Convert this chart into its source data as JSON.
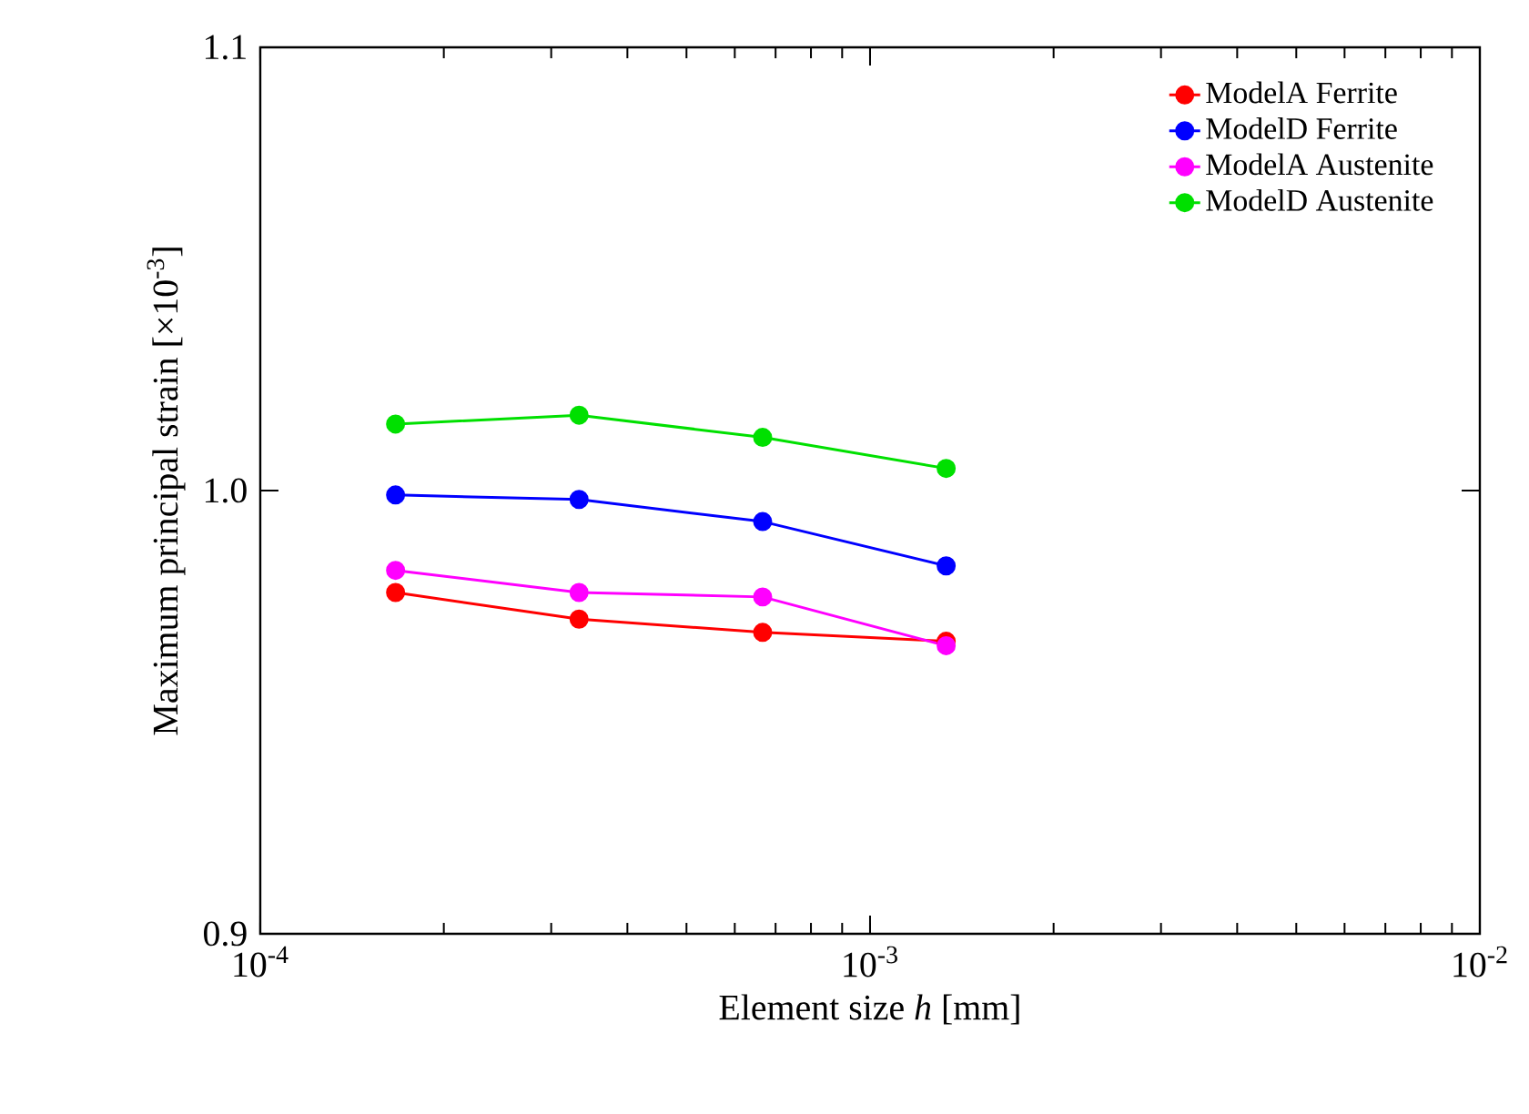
{
  "chart_data": {
    "type": "line",
    "xlabel": "Element size *h* [mm]",
    "ylabel": "Maximum principal strain [×10$^{-3}$]",
    "x": [
      0.0001667,
      0.0003333,
      0.0006667,
      0.001333
    ],
    "series": [
      {
        "name": "ModelA Ferrite",
        "color": "#ff0000",
        "values": [
          0.977,
          0.971,
          0.968,
          0.966
        ]
      },
      {
        "name": "ModelD Ferrite",
        "color": "#0000ff",
        "values": [
          0.999,
          0.998,
          0.993,
          0.983
        ]
      },
      {
        "name": "ModelA Austenite",
        "color": "#ff00ff",
        "values": [
          0.982,
          0.977,
          0.976,
          0.965
        ]
      },
      {
        "name": "ModelD Austenite",
        "color": "#00e000",
        "values": [
          1.015,
          1.017,
          1.012,
          1.005
        ]
      }
    ],
    "log": "x",
    "xlim": [
      0.0001,
      0.01
    ],
    "xticks": [
      {
        "value": 0.0001,
        "label": "10$^{-4}$"
      },
      {
        "value": 0.001,
        "label": "10$^{-3}$"
      },
      {
        "value": 0.01,
        "label": "10$^{-2}$"
      }
    ],
    "ylim": [
      0.9,
      1.1
    ],
    "yticks": [
      {
        "value": 0.9,
        "label": "0.9"
      },
      {
        "value": 1.0,
        "label": "1.0"
      },
      {
        "value": 1.1,
        "label": "1.1"
      }
    ],
    "grid": false,
    "legend": "top right",
    "marker": "circle",
    "line_style": "solid"
  }
}
